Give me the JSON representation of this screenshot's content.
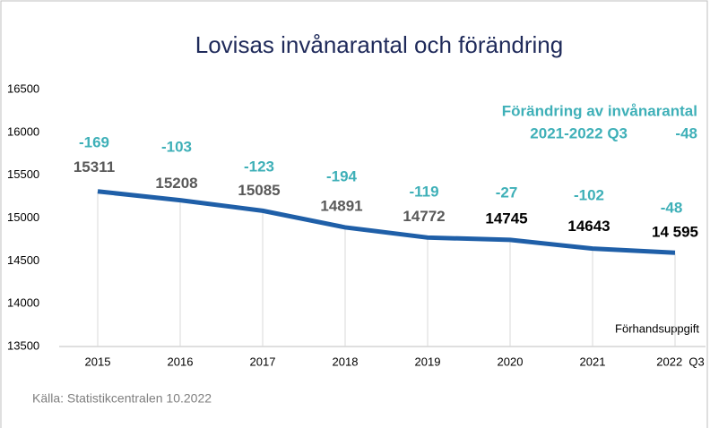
{
  "chart_data": {
    "type": "line",
    "title": "Lovisas invånarantal och förändring",
    "categories": [
      "2015",
      "2016",
      "2017",
      "2018",
      "2019",
      "2020",
      "2021",
      "2022  Q3"
    ],
    "series": [
      {
        "name": "Invånarantal",
        "color": "#1f5fa8",
        "values": [
          15311,
          15208,
          15085,
          14891,
          14772,
          14745,
          14643,
          14595
        ],
        "value_labels": [
          "15311",
          "15208",
          "15085",
          "14891",
          "14772",
          "14745",
          "14643",
          "14 595"
        ],
        "value_label_colors": [
          "#595959",
          "#595959",
          "#595959",
          "#595959",
          "#595959",
          "#000000",
          "#000000",
          "#000000"
        ]
      }
    ],
    "changes": [
      -169,
      -103,
      -123,
      -194,
      -119,
      -27,
      -102,
      -48
    ],
    "change_color": "#3fb0b8",
    "ylim": [
      13500,
      16500
    ],
    "yticks": [
      13500,
      14000,
      14500,
      15000,
      15500,
      16000,
      16500
    ],
    "grid": false,
    "annotations": {
      "change_title": "Förändring av invånarantal",
      "period": "2021-2022 Q3",
      "period_change": -48,
      "note": "Förhandsuppgift"
    },
    "source": "Källa: Statistikcentralen 10.2022"
  }
}
